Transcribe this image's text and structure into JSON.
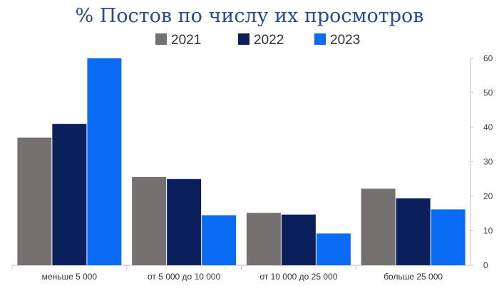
{
  "chart_data": {
    "type": "bar",
    "title": "% Постов по числу их просмотров",
    "categories": [
      "меньше 5 000",
      "от 5 000 до 10 000",
      "от 10 000 до 25 000",
      "больше 25 000"
    ],
    "series": [
      {
        "name": "2021",
        "values": [
          37,
          25.6,
          15.2,
          22.2
        ],
        "color": "#767171"
      },
      {
        "name": "2022",
        "values": [
          41,
          25,
          14.7,
          19.4
        ],
        "color": "#0b1f5c"
      },
      {
        "name": "2023",
        "values": [
          60,
          14.5,
          9.2,
          16.2
        ],
        "color": "#0a6cf5"
      }
    ],
    "yticks": [
      "0",
      "10",
      "20",
      "30",
      "40",
      "50",
      "60"
    ],
    "ylim": [
      0,
      60
    ],
    "y_axis_side": "right",
    "grid": false,
    "legend_position": "top"
  }
}
